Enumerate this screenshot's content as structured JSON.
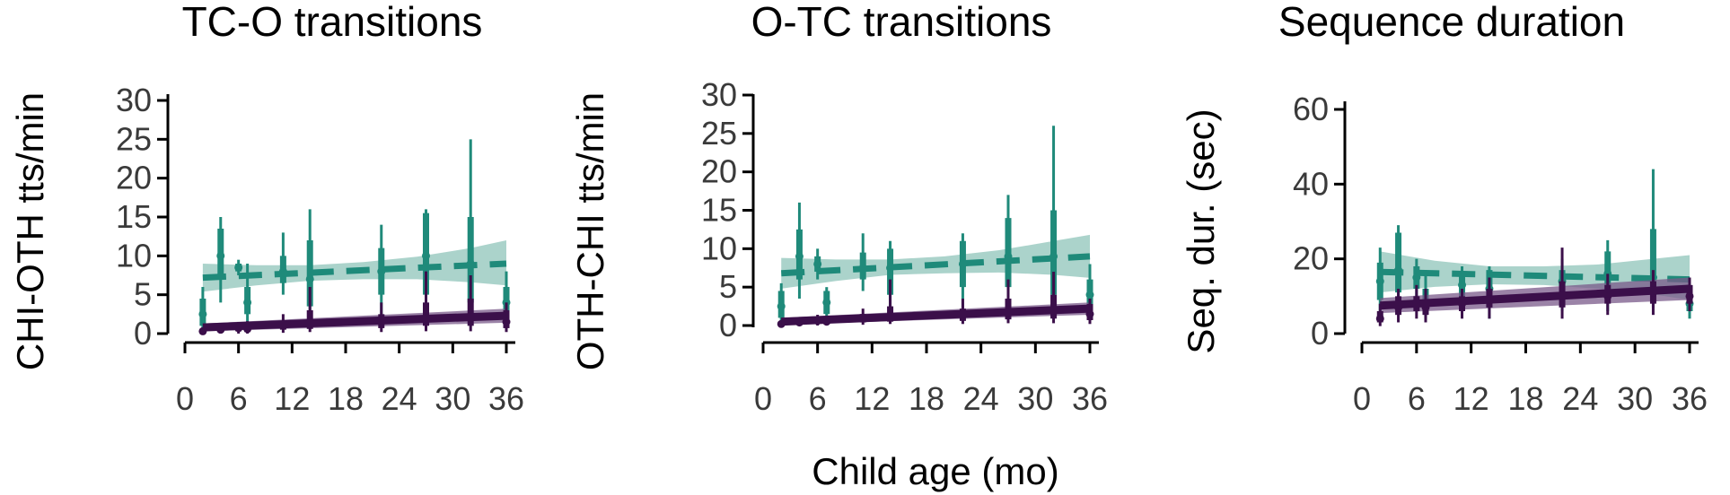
{
  "colors": {
    "teal": "#1f8a7a",
    "teal_band": "#8fc4ba",
    "purple": "#3b0f4a",
    "purple_band": "#7a5a8a"
  },
  "x_label": "Child age (mo)",
  "chart_data": [
    {
      "type": "line",
      "title": "TC-O transitions",
      "ylabel": "CHI-OTH tts/min",
      "xlim": [
        0,
        36
      ],
      "ylim": [
        0,
        30
      ],
      "x_ticks": [
        0,
        6,
        12,
        18,
        24,
        30,
        36
      ],
      "x_tick_labels": [
        "0",
        "6",
        "12",
        "18",
        "24",
        "30",
        "36"
      ],
      "y_ticks": [
        0,
        5,
        10,
        15,
        20,
        25,
        30
      ],
      "y_tick_labels": [
        "0",
        "5",
        "10",
        "15",
        "20",
        "25",
        "30"
      ],
      "series": [
        {
          "style": "dashed",
          "color_key": "teal",
          "fit": {
            "x": [
              2,
              36
            ],
            "y": [
              7.2,
              9.0
            ]
          },
          "band": {
            "x": [
              2,
              8,
              14,
              20,
              26,
              32,
              36
            ],
            "upper": [
              9.0,
              8.8,
              8.8,
              9.2,
              9.9,
              11.0,
              12.0
            ],
            "lower": [
              5.4,
              6.2,
              6.8,
              7.0,
              7.0,
              6.6,
              6.2
            ]
          },
          "points": [
            {
              "x": 2,
              "median": 2.5,
              "q1": 1.0,
              "q3": 4.5,
              "min": 0.5,
              "max": 6.0
            },
            {
              "x": 4,
              "median": 10.0,
              "q1": 7.0,
              "q3": 13.5,
              "min": 4.0,
              "max": 15.0
            },
            {
              "x": 6,
              "median": 8.5,
              "q1": 8.0,
              "q3": 9.0,
              "min": 7.5,
              "max": 9.5
            },
            {
              "x": 7,
              "median": 4.0,
              "q1": 2.5,
              "q3": 6.0,
              "min": 1.0,
              "max": 9.0
            },
            {
              "x": 11,
              "median": 8.0,
              "q1": 6.5,
              "q3": 10.0,
              "min": 5.0,
              "max": 13.0
            },
            {
              "x": 14,
              "median": 7.0,
              "q1": 3.5,
              "q3": 12.0,
              "min": 1.0,
              "max": 16.0
            },
            {
              "x": 22,
              "median": 8.0,
              "q1": 5.0,
              "q3": 11.0,
              "min": 2.0,
              "max": 14.0
            },
            {
              "x": 27,
              "median": 10.0,
              "q1": 5.0,
              "q3": 15.5,
              "min": 2.0,
              "max": 16.0
            },
            {
              "x": 32,
              "median": 9.0,
              "q1": 4.0,
              "q3": 15.0,
              "min": 1.0,
              "max": 25.0
            },
            {
              "x": 36,
              "median": 4.0,
              "q1": 2.0,
              "q3": 6.0,
              "min": 0.5,
              "max": 8.0
            }
          ]
        },
        {
          "style": "solid",
          "color_key": "purple",
          "fit": {
            "x": [
              2,
              36
            ],
            "y": [
              0.8,
              2.3
            ]
          },
          "band": {
            "x": [
              2,
              36
            ],
            "upper": [
              1.3,
              3.2
            ],
            "lower": [
              0.3,
              1.4
            ]
          },
          "points": [
            {
              "x": 2,
              "median": 0.3,
              "q1": 0.1,
              "q3": 0.5,
              "min": 0.0,
              "max": 0.8
            },
            {
              "x": 4,
              "median": 0.5,
              "q1": 0.2,
              "q3": 0.8,
              "min": 0.0,
              "max": 1.2
            },
            {
              "x": 6,
              "median": 0.7,
              "q1": 0.3,
              "q3": 1.1,
              "min": 0.0,
              "max": 1.5
            },
            {
              "x": 7,
              "median": 0.6,
              "q1": 0.2,
              "q3": 1.0,
              "min": 0.0,
              "max": 1.6
            },
            {
              "x": 11,
              "median": 1.0,
              "q1": 0.5,
              "q3": 1.6,
              "min": 0.1,
              "max": 2.5
            },
            {
              "x": 14,
              "median": 1.2,
              "q1": 0.6,
              "q3": 3.0,
              "min": 0.2,
              "max": 6.0
            },
            {
              "x": 22,
              "median": 1.5,
              "q1": 0.7,
              "q3": 2.5,
              "min": 0.2,
              "max": 4.0
            },
            {
              "x": 27,
              "median": 2.0,
              "q1": 1.0,
              "q3": 4.0,
              "min": 0.3,
              "max": 8.0
            },
            {
              "x": 32,
              "median": 2.0,
              "q1": 1.0,
              "q3": 4.5,
              "min": 0.3,
              "max": 7.5
            },
            {
              "x": 36,
              "median": 1.5,
              "q1": 0.7,
              "q3": 3.0,
              "min": 0.2,
              "max": 4.0
            }
          ]
        }
      ]
    },
    {
      "type": "line",
      "title": "O-TC transitions",
      "ylabel": "OTH-CHI tts/min",
      "xlim": [
        0,
        36
      ],
      "ylim": [
        0,
        30
      ],
      "x_ticks": [
        0,
        6,
        12,
        18,
        24,
        30,
        36
      ],
      "x_tick_labels": [
        "0",
        "6",
        "12",
        "18",
        "24",
        "30",
        "36"
      ],
      "y_ticks": [
        0,
        5,
        10,
        15,
        20,
        25,
        30
      ],
      "y_tick_labels": [
        "0",
        "5",
        "10",
        "15",
        "20",
        "25",
        "30"
      ],
      "series": [
        {
          "style": "dashed",
          "color_key": "teal",
          "fit": {
            "x": [
              2,
              36
            ],
            "y": [
              6.8,
              9.0
            ]
          },
          "band": {
            "x": [
              2,
              8,
              14,
              20,
              26,
              32,
              36
            ],
            "upper": [
              8.8,
              8.6,
              8.6,
              9.0,
              9.8,
              11.0,
              11.8
            ],
            "lower": [
              4.8,
              5.8,
              6.6,
              6.8,
              6.9,
              6.6,
              6.2
            ]
          },
          "points": [
            {
              "x": 2,
              "median": 2.5,
              "q1": 1.0,
              "q3": 4.5,
              "min": 0.3,
              "max": 5.5
            },
            {
              "x": 4,
              "median": 9.0,
              "q1": 6.0,
              "q3": 12.5,
              "min": 3.5,
              "max": 16.0
            },
            {
              "x": 6,
              "median": 8.0,
              "q1": 7.0,
              "q3": 9.0,
              "min": 6.0,
              "max": 10.0
            },
            {
              "x": 7,
              "median": 3.0,
              "q1": 1.5,
              "q3": 4.5,
              "min": 0.5,
              "max": 5.0
            },
            {
              "x": 11,
              "median": 7.5,
              "q1": 6.0,
              "q3": 9.5,
              "min": 4.5,
              "max": 12.0
            },
            {
              "x": 14,
              "median": 7.5,
              "q1": 4.0,
              "q3": 10.0,
              "min": 2.0,
              "max": 11.0
            },
            {
              "x": 22,
              "median": 8.0,
              "q1": 5.0,
              "q3": 11.0,
              "min": 2.0,
              "max": 12.0
            },
            {
              "x": 27,
              "median": 9.0,
              "q1": 5.0,
              "q3": 14.0,
              "min": 2.0,
              "max": 17.0
            },
            {
              "x": 32,
              "median": 9.0,
              "q1": 4.0,
              "q3": 15.0,
              "min": 1.0,
              "max": 26.0
            },
            {
              "x": 36,
              "median": 4.0,
              "q1": 2.0,
              "q3": 6.0,
              "min": 0.5,
              "max": 8.0
            }
          ]
        },
        {
          "style": "solid",
          "color_key": "purple",
          "fit": {
            "x": [
              2,
              36
            ],
            "y": [
              0.5,
              2.2
            ]
          },
          "band": {
            "x": [
              2,
              36
            ],
            "upper": [
              1.0,
              3.0
            ],
            "lower": [
              0.1,
              1.4
            ]
          },
          "points": [
            {
              "x": 2,
              "median": 0.2,
              "q1": 0.1,
              "q3": 0.4,
              "min": 0.0,
              "max": 0.6
            },
            {
              "x": 4,
              "median": 0.4,
              "q1": 0.2,
              "q3": 0.7,
              "min": 0.0,
              "max": 1.0
            },
            {
              "x": 6,
              "median": 0.6,
              "q1": 0.3,
              "q3": 1.0,
              "min": 0.0,
              "max": 1.4
            },
            {
              "x": 7,
              "median": 0.5,
              "q1": 0.2,
              "q3": 0.9,
              "min": 0.0,
              "max": 1.3
            },
            {
              "x": 11,
              "median": 0.9,
              "q1": 0.4,
              "q3": 1.5,
              "min": 0.1,
              "max": 2.2
            },
            {
              "x": 14,
              "median": 1.1,
              "q1": 0.5,
              "q3": 2.5,
              "min": 0.2,
              "max": 6.0
            },
            {
              "x": 22,
              "median": 1.3,
              "q1": 0.6,
              "q3": 2.2,
              "min": 0.2,
              "max": 3.5
            },
            {
              "x": 27,
              "median": 1.7,
              "q1": 0.8,
              "q3": 3.5,
              "min": 0.3,
              "max": 6.0
            },
            {
              "x": 32,
              "median": 1.8,
              "q1": 0.9,
              "q3": 4.0,
              "min": 0.3,
              "max": 7.0
            },
            {
              "x": 36,
              "median": 1.5,
              "q1": 0.7,
              "q3": 2.8,
              "min": 0.2,
              "max": 3.5
            }
          ]
        }
      ]
    },
    {
      "type": "line",
      "title": "Sequence duration",
      "ylabel": "Seq. dur. (sec)",
      "xlim": [
        0,
        36
      ],
      "ylim": [
        0,
        60
      ],
      "x_ticks": [
        0,
        6,
        12,
        18,
        24,
        30,
        36
      ],
      "x_tick_labels": [
        "0",
        "6",
        "12",
        "18",
        "24",
        "30",
        "36"
      ],
      "y_ticks": [
        0,
        20,
        40,
        60
      ],
      "y_tick_labels": [
        "0",
        "20",
        "40",
        "60"
      ],
      "series": [
        {
          "style": "dashed",
          "color_key": "teal",
          "fit": {
            "x": [
              2,
              36
            ],
            "y": [
              16.5,
              14.5
            ]
          },
          "band": {
            "x": [
              2,
              8,
              14,
              20,
              26,
              32,
              36
            ],
            "upper": [
              22.0,
              19.5,
              18.0,
              18.0,
              18.5,
              20.0,
              21.0
            ],
            "lower": [
              11.0,
              12.5,
              13.2,
              13.0,
              12.0,
              10.5,
              9.0
            ]
          },
          "points": [
            {
              "x": 2,
              "median": 14.0,
              "q1": 9.0,
              "q3": 19.0,
              "min": 6.0,
              "max": 23.0
            },
            {
              "x": 4,
              "median": 17.0,
              "q1": 11.0,
              "q3": 27.0,
              "min": 7.0,
              "max": 29.0
            },
            {
              "x": 6,
              "median": 15.0,
              "q1": 12.0,
              "q3": 18.0,
              "min": 9.0,
              "max": 20.0
            },
            {
              "x": 7,
              "median": 8.0,
              "q1": 6.0,
              "q3": 12.0,
              "min": 4.0,
              "max": 17.0
            },
            {
              "x": 11,
              "median": 13.0,
              "q1": 10.0,
              "q3": 16.0,
              "min": 7.0,
              "max": 18.0
            },
            {
              "x": 14,
              "median": 12.0,
              "q1": 7.0,
              "q3": 17.0,
              "min": 4.0,
              "max": 18.0
            },
            {
              "x": 22,
              "median": 14.0,
              "q1": 10.0,
              "q3": 17.0,
              "min": 6.0,
              "max": 20.0
            },
            {
              "x": 27,
              "median": 16.0,
              "q1": 10.0,
              "q3": 22.0,
              "min": 6.0,
              "max": 25.0
            },
            {
              "x": 32,
              "median": 15.0,
              "q1": 10.0,
              "q3": 28.0,
              "min": 7.0,
              "max": 44.0
            },
            {
              "x": 36,
              "median": 8.0,
              "q1": 6.0,
              "q3": 11.0,
              "min": 4.0,
              "max": 14.0
            }
          ]
        },
        {
          "style": "solid",
          "color_key": "purple",
          "fit": {
            "x": [
              2,
              36
            ],
            "y": [
              7.5,
              12.0
            ]
          },
          "band": {
            "x": [
              2,
              36
            ],
            "upper": [
              9.5,
              15.0
            ],
            "lower": [
              5.5,
              9.0
            ]
          },
          "points": [
            {
              "x": 2,
              "median": 4.0,
              "q1": 3.0,
              "q3": 6.0,
              "min": 2.0,
              "max": 8.0
            },
            {
              "x": 4,
              "median": 7.0,
              "q1": 5.0,
              "q3": 10.0,
              "min": 3.0,
              "max": 12.0
            },
            {
              "x": 6,
              "median": 8.0,
              "q1": 6.0,
              "q3": 10.0,
              "min": 4.0,
              "max": 13.0
            },
            {
              "x": 7,
              "median": 7.0,
              "q1": 5.0,
              "q3": 9.0,
              "min": 3.0,
              "max": 12.0
            },
            {
              "x": 11,
              "median": 8.0,
              "q1": 6.0,
              "q3": 10.0,
              "min": 4.0,
              "max": 12.0
            },
            {
              "x": 14,
              "median": 9.0,
              "q1": 7.0,
              "q3": 12.0,
              "min": 4.0,
              "max": 15.0
            },
            {
              "x": 22,
              "median": 10.0,
              "q1": 7.0,
              "q3": 14.0,
              "min": 4.0,
              "max": 23.0
            },
            {
              "x": 27,
              "median": 10.0,
              "q1": 8.0,
              "q3": 13.0,
              "min": 5.0,
              "max": 16.0
            },
            {
              "x": 32,
              "median": 11.0,
              "q1": 8.0,
              "q3": 14.0,
              "min": 5.0,
              "max": 17.0
            },
            {
              "x": 36,
              "median": 10.0,
              "q1": 8.0,
              "q3": 13.0,
              "min": 6.0,
              "max": 15.0
            }
          ]
        }
      ]
    }
  ]
}
